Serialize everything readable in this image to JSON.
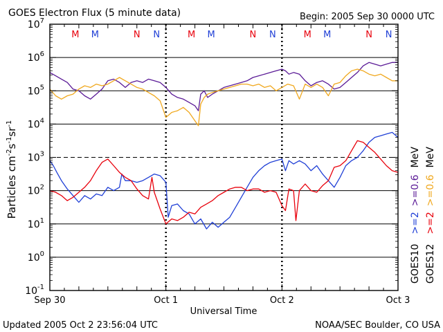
{
  "chart_data": {
    "type": "line",
    "title": "GOES Electron Flux (5 minute data)",
    "begin_label": "Begin: 2005 Sep 30 0000 UTC",
    "xlabel": "Universal Time",
    "ylabel_parts": [
      "Particles cm",
      "-2",
      "s",
      "-1",
      "sr",
      "-1"
    ],
    "yscale": "log",
    "ylim_exp": [
      -1,
      7
    ],
    "x_range_days": [
      0,
      3
    ],
    "x_ticks": [
      {
        "x": 0,
        "label": "Sep 30"
      },
      {
        "x": 1,
        "label": "Oct 1"
      },
      {
        "x": 2,
        "label": "Oct 2"
      },
      {
        "x": 3,
        "label": "Oct 3"
      }
    ],
    "y_ticks": [
      {
        "base": "10",
        "exp": "7"
      },
      {
        "base": "10",
        "exp": "6"
      },
      {
        "base": "10",
        "exp": "5"
      },
      {
        "base": "10",
        "exp": "4"
      },
      {
        "base": "10",
        "exp": "3"
      },
      {
        "base": "10",
        "exp": "2"
      },
      {
        "base": "10",
        "exp": "1"
      },
      {
        "base": "10",
        "exp": "0"
      },
      {
        "base": "10",
        "exp": "-1"
      }
    ],
    "solid_gridlines_exp": [
      6,
      5,
      4,
      2,
      1,
      0
    ],
    "dashed_threshold_exp": 3,
    "day_boundaries_x": [
      1,
      2
    ],
    "markers": [
      {
        "x": 0.22,
        "label": "M",
        "color": "#e8000b"
      },
      {
        "x": 0.39,
        "label": "M",
        "color": "#1f3fd6"
      },
      {
        "x": 0.75,
        "label": "N",
        "color": "#e8000b"
      },
      {
        "x": 0.92,
        "label": "N",
        "color": "#1f3fd6"
      },
      {
        "x": 1.22,
        "label": "M",
        "color": "#e8000b"
      },
      {
        "x": 1.39,
        "label": "M",
        "color": "#1f3fd6"
      },
      {
        "x": 1.75,
        "label": "N",
        "color": "#e8000b"
      },
      {
        "x": 1.92,
        "label": "N",
        "color": "#1f3fd6"
      },
      {
        "x": 2.22,
        "label": "M",
        "color": "#e8000b"
      },
      {
        "x": 2.39,
        "label": "M",
        "color": "#1f3fd6"
      },
      {
        "x": 2.75,
        "label": "N",
        "color": "#e8000b"
      },
      {
        "x": 2.92,
        "label": "N",
        "color": "#1f3fd6"
      }
    ],
    "legend": {
      "position": "right",
      "groups": [
        {
          "satellite": "GOES10",
          "entries": [
            {
              "label": ">=2",
              "color": "#1f3fd6"
            },
            {
              "label": ">=0.6",
              "color": "#5a1a96"
            }
          ]
        },
        {
          "satellite": "GOES12",
          "entries": [
            {
              "label": ">=2",
              "color": "#e8000b"
            },
            {
              "label": ">=0.6",
              "color": "#f0a81e"
            }
          ]
        }
      ],
      "unit": "MeV"
    },
    "series": [
      {
        "name": "GOES10 >=0.6 MeV",
        "color": "#5a1a96",
        "log10": [
          [
            0,
            5.55
          ],
          [
            0.05,
            5.45
          ],
          [
            0.1,
            5.35
          ],
          [
            0.15,
            5.25
          ],
          [
            0.2,
            5.05
          ],
          [
            0.25,
            5.0
          ],
          [
            0.3,
            4.85
          ],
          [
            0.35,
            4.75
          ],
          [
            0.4,
            4.9
          ],
          [
            0.45,
            5.05
          ],
          [
            0.5,
            5.3
          ],
          [
            0.55,
            5.35
          ],
          [
            0.6,
            5.25
          ],
          [
            0.65,
            5.1
          ],
          [
            0.7,
            5.25
          ],
          [
            0.75,
            5.3
          ],
          [
            0.8,
            5.25
          ],
          [
            0.85,
            5.35
          ],
          [
            0.9,
            5.3
          ],
          [
            0.95,
            5.25
          ],
          [
            1.0,
            5.1
          ],
          [
            1.05,
            4.9
          ],
          [
            1.1,
            4.8
          ],
          [
            1.15,
            4.75
          ],
          [
            1.2,
            4.65
          ],
          [
            1.25,
            4.55
          ],
          [
            1.28,
            4.4
          ],
          [
            1.3,
            4.9
          ],
          [
            1.33,
            5.0
          ],
          [
            1.36,
            4.8
          ],
          [
            1.4,
            4.9
          ],
          [
            1.45,
            5.0
          ],
          [
            1.5,
            5.1
          ],
          [
            1.55,
            5.15
          ],
          [
            1.6,
            5.2
          ],
          [
            1.65,
            5.25
          ],
          [
            1.7,
            5.3
          ],
          [
            1.75,
            5.4
          ],
          [
            1.8,
            5.45
          ],
          [
            1.85,
            5.5
          ],
          [
            1.9,
            5.55
          ],
          [
            1.95,
            5.6
          ],
          [
            2.0,
            5.65
          ],
          [
            2.03,
            5.6
          ],
          [
            2.06,
            5.5
          ],
          [
            2.1,
            5.55
          ],
          [
            2.15,
            5.5
          ],
          [
            2.2,
            5.3
          ],
          [
            2.25,
            5.15
          ],
          [
            2.3,
            5.25
          ],
          [
            2.35,
            5.3
          ],
          [
            2.4,
            5.2
          ],
          [
            2.45,
            5.05
          ],
          [
            2.5,
            5.1
          ],
          [
            2.55,
            5.25
          ],
          [
            2.6,
            5.4
          ],
          [
            2.65,
            5.55
          ],
          [
            2.7,
            5.75
          ],
          [
            2.75,
            5.85
          ],
          [
            2.8,
            5.8
          ],
          [
            2.85,
            5.75
          ],
          [
            2.9,
            5.8
          ],
          [
            2.95,
            5.85
          ],
          [
            3.0,
            5.85
          ]
        ]
      },
      {
        "name": "GOES12 >=0.6 MeV",
        "color": "#f0a81e",
        "log10": [
          [
            0,
            5.05
          ],
          [
            0.05,
            4.85
          ],
          [
            0.1,
            4.75
          ],
          [
            0.15,
            4.85
          ],
          [
            0.2,
            4.9
          ],
          [
            0.25,
            5.05
          ],
          [
            0.3,
            5.15
          ],
          [
            0.35,
            5.1
          ],
          [
            0.4,
            5.2
          ],
          [
            0.45,
            5.15
          ],
          [
            0.5,
            5.2
          ],
          [
            0.55,
            5.3
          ],
          [
            0.6,
            5.4
          ],
          [
            0.65,
            5.3
          ],
          [
            0.7,
            5.2
          ],
          [
            0.75,
            5.1
          ],
          [
            0.8,
            5.05
          ],
          [
            0.85,
            4.95
          ],
          [
            0.9,
            4.85
          ],
          [
            0.95,
            4.7
          ],
          [
            1.0,
            4.2
          ],
          [
            1.05,
            4.35
          ],
          [
            1.1,
            4.4
          ],
          [
            1.15,
            4.5
          ],
          [
            1.2,
            4.35
          ],
          [
            1.25,
            4.1
          ],
          [
            1.28,
            3.95
          ],
          [
            1.3,
            4.6
          ],
          [
            1.33,
            4.8
          ],
          [
            1.36,
            4.9
          ],
          [
            1.4,
            4.95
          ],
          [
            1.45,
            5.0
          ],
          [
            1.5,
            5.05
          ],
          [
            1.55,
            5.1
          ],
          [
            1.6,
            5.15
          ],
          [
            1.65,
            5.2
          ],
          [
            1.7,
            5.2
          ],
          [
            1.75,
            5.15
          ],
          [
            1.8,
            5.2
          ],
          [
            1.85,
            5.1
          ],
          [
            1.9,
            5.15
          ],
          [
            1.95,
            5.0
          ],
          [
            2.0,
            5.1
          ],
          [
            2.05,
            5.2
          ],
          [
            2.1,
            5.15
          ],
          [
            2.15,
            4.75
          ],
          [
            2.2,
            5.2
          ],
          [
            2.25,
            5.1
          ],
          [
            2.3,
            5.2
          ],
          [
            2.35,
            5.1
          ],
          [
            2.4,
            4.85
          ],
          [
            2.45,
            5.2
          ],
          [
            2.5,
            5.25
          ],
          [
            2.55,
            5.45
          ],
          [
            2.6,
            5.6
          ],
          [
            2.65,
            5.65
          ],
          [
            2.7,
            5.6
          ],
          [
            2.75,
            5.5
          ],
          [
            2.8,
            5.45
          ],
          [
            2.85,
            5.5
          ],
          [
            2.9,
            5.4
          ],
          [
            2.95,
            5.3
          ],
          [
            3.0,
            5.3
          ]
        ]
      },
      {
        "name": "GOES10 >=2 MeV",
        "color": "#1f3fd6",
        "log10": [
          [
            0,
            2.9
          ],
          [
            0.03,
            2.75
          ],
          [
            0.06,
            2.55
          ],
          [
            0.1,
            2.3
          ],
          [
            0.15,
            2.05
          ],
          [
            0.2,
            1.85
          ],
          [
            0.25,
            1.65
          ],
          [
            0.3,
            1.85
          ],
          [
            0.35,
            1.75
          ],
          [
            0.4,
            1.9
          ],
          [
            0.45,
            1.85
          ],
          [
            0.5,
            2.1
          ],
          [
            0.55,
            2.0
          ],
          [
            0.6,
            2.1
          ],
          [
            0.62,
            2.5
          ],
          [
            0.65,
            2.3
          ],
          [
            0.7,
            2.3
          ],
          [
            0.75,
            2.25
          ],
          [
            0.8,
            2.3
          ],
          [
            0.85,
            2.4
          ],
          [
            0.9,
            2.5
          ],
          [
            0.95,
            2.45
          ],
          [
            1.0,
            2.25
          ],
          [
            1.02,
            1.2
          ],
          [
            1.05,
            1.55
          ],
          [
            1.1,
            1.6
          ],
          [
            1.15,
            1.4
          ],
          [
            1.2,
            1.3
          ],
          [
            1.25,
            1.0
          ],
          [
            1.3,
            1.15
          ],
          [
            1.35,
            0.85
          ],
          [
            1.4,
            1.05
          ],
          [
            1.45,
            0.9
          ],
          [
            1.5,
            1.05
          ],
          [
            1.55,
            1.2
          ],
          [
            1.6,
            1.5
          ],
          [
            1.65,
            1.8
          ],
          [
            1.7,
            2.1
          ],
          [
            1.75,
            2.4
          ],
          [
            1.8,
            2.6
          ],
          [
            1.85,
            2.75
          ],
          [
            1.9,
            2.85
          ],
          [
            1.95,
            2.9
          ],
          [
            2.0,
            2.95
          ],
          [
            2.03,
            2.6
          ],
          [
            2.06,
            2.9
          ],
          [
            2.1,
            2.8
          ],
          [
            2.15,
            2.9
          ],
          [
            2.2,
            2.8
          ],
          [
            2.25,
            2.6
          ],
          [
            2.3,
            2.75
          ],
          [
            2.35,
            2.5
          ],
          [
            2.4,
            2.3
          ],
          [
            2.45,
            2.1
          ],
          [
            2.5,
            2.4
          ],
          [
            2.55,
            2.75
          ],
          [
            2.6,
            2.9
          ],
          [
            2.65,
            3.0
          ],
          [
            2.7,
            3.2
          ],
          [
            2.75,
            3.45
          ],
          [
            2.8,
            3.6
          ],
          [
            2.85,
            3.65
          ],
          [
            2.9,
            3.7
          ],
          [
            2.95,
            3.75
          ],
          [
            3.0,
            3.6
          ]
        ]
      },
      {
        "name": "GOES12 >=2 MeV",
        "color": "#e8000b",
        "log10": [
          [
            0,
            2.0
          ],
          [
            0.05,
            1.95
          ],
          [
            0.1,
            1.85
          ],
          [
            0.15,
            1.7
          ],
          [
            0.2,
            1.8
          ],
          [
            0.25,
            1.95
          ],
          [
            0.3,
            2.1
          ],
          [
            0.35,
            2.3
          ],
          [
            0.4,
            2.6
          ],
          [
            0.45,
            2.85
          ],
          [
            0.5,
            2.95
          ],
          [
            0.55,
            2.75
          ],
          [
            0.6,
            2.55
          ],
          [
            0.65,
            2.4
          ],
          [
            0.7,
            2.3
          ],
          [
            0.75,
            2.05
          ],
          [
            0.8,
            1.85
          ],
          [
            0.85,
            1.75
          ],
          [
            0.88,
            2.4
          ],
          [
            0.9,
            1.95
          ],
          [
            0.95,
            1.45
          ],
          [
            1.0,
            1.0
          ],
          [
            1.05,
            1.15
          ],
          [
            1.1,
            1.1
          ],
          [
            1.15,
            1.2
          ],
          [
            1.2,
            1.35
          ],
          [
            1.25,
            1.3
          ],
          [
            1.3,
            1.5
          ],
          [
            1.35,
            1.6
          ],
          [
            1.4,
            1.7
          ],
          [
            1.45,
            1.85
          ],
          [
            1.5,
            1.95
          ],
          [
            1.55,
            2.05
          ],
          [
            1.6,
            2.1
          ],
          [
            1.65,
            2.1
          ],
          [
            1.7,
            2.0
          ],
          [
            1.75,
            2.05
          ],
          [
            1.8,
            2.05
          ],
          [
            1.85,
            1.95
          ],
          [
            1.9,
            2.0
          ],
          [
            1.95,
            1.95
          ],
          [
            2.0,
            1.55
          ],
          [
            2.03,
            1.4
          ],
          [
            2.06,
            2.05
          ],
          [
            2.1,
            2.0
          ],
          [
            2.12,
            1.1
          ],
          [
            2.15,
            2.0
          ],
          [
            2.2,
            2.2
          ],
          [
            2.25,
            2.0
          ],
          [
            2.3,
            1.95
          ],
          [
            2.35,
            2.15
          ],
          [
            2.4,
            2.3
          ],
          [
            2.45,
            2.7
          ],
          [
            2.5,
            2.75
          ],
          [
            2.55,
            2.9
          ],
          [
            2.6,
            3.2
          ],
          [
            2.65,
            3.5
          ],
          [
            2.7,
            3.45
          ],
          [
            2.75,
            3.3
          ],
          [
            2.8,
            3.15
          ],
          [
            2.85,
            2.95
          ],
          [
            2.9,
            2.75
          ],
          [
            2.95,
            2.6
          ],
          [
            3.0,
            2.55
          ]
        ]
      }
    ]
  },
  "footer": {
    "updated": "Updated 2005 Oct  2 23:56:04 UTC",
    "credit": "NOAA/SEC Boulder, CO USA"
  }
}
